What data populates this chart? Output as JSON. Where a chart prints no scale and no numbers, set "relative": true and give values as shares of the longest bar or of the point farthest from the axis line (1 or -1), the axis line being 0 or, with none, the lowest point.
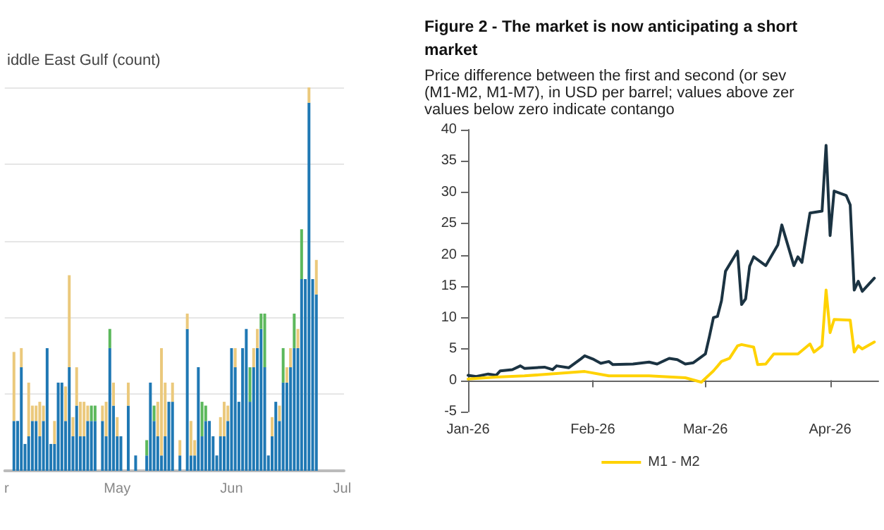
{
  "chart_data": [
    {
      "type": "bar",
      "title": "iddle East Gulf (count)",
      "relative": true,
      "stacked": true,
      "grid": "y",
      "legend": false,
      "x": [
        "--04-03",
        "--04-04",
        "--04-05",
        "--04-06",
        "--04-07",
        "--04-08",
        "--04-09",
        "--04-10",
        "--04-11",
        "--04-12",
        "--04-13",
        "--04-14",
        "--04-15",
        "--04-16",
        "--04-17",
        "--04-18",
        "--04-19",
        "--04-20",
        "--04-21",
        "--04-22",
        "--04-23",
        "--04-24",
        "--04-25",
        "--04-26",
        "--04-27",
        "--04-28",
        "--04-29",
        "--04-30",
        "--05-01",
        "--05-02",
        "--05-03",
        "--05-04",
        "--05-05",
        "--05-06",
        "--05-07",
        "--05-08",
        "--05-09",
        "--05-10",
        "--05-11",
        "--05-12",
        "--05-13",
        "--05-14",
        "--05-15",
        "--05-16",
        "--05-17",
        "--05-18",
        "--05-19",
        "--05-20",
        "--05-21",
        "--05-22",
        "--05-23",
        "--05-24",
        "--05-25",
        "--05-26",
        "--05-27",
        "--05-28",
        "--05-29",
        "--05-30",
        "--05-31",
        "--06-01",
        "--06-02",
        "--06-03",
        "--06-04",
        "--06-05",
        "--06-06",
        "--06-07",
        "--06-08",
        "--06-09",
        "--06-10",
        "--06-11",
        "--06-12",
        "--06-13",
        "--06-14",
        "--06-15",
        "--06-16",
        "--06-17",
        "--06-18",
        "--06-19",
        "--06-20",
        "--06-21",
        "--06-22",
        "--06-23",
        "--06-24"
      ],
      "xlim": [
        "--04-01",
        "--07-01"
      ],
      "xticks": [
        {
          "value": "--04-01",
          "label": "r"
        },
        {
          "value": "--05-01",
          "label": "May"
        },
        {
          "value": "--06-01",
          "label": "Jun"
        },
        {
          "value": "--07-01",
          "label": "Jul"
        }
      ],
      "series": [
        {
          "color": "#1f78b4",
          "values": [
            0.13,
            0.13,
            0.27,
            0.07,
            0.09,
            0.13,
            0.13,
            0.09,
            0.13,
            0.32,
            0.07,
            0.07,
            0.23,
            0.23,
            0.13,
            0.27,
            0.09,
            0.17,
            0.09,
            0.09,
            0.13,
            0.13,
            0.13,
            null,
            0.13,
            0.09,
            0.32,
            0.17,
            0.09,
            0.09,
            null,
            0.17,
            null,
            0.04,
            null,
            null,
            0.04,
            0.23,
            0.13,
            0.09,
            0.04,
            0.09,
            0.18,
            0.18,
            null,
            0.04,
            null,
            0.37,
            0.04,
            0.04,
            0.27,
            0.09,
            0.13,
            0.13,
            0.09,
            0.04,
            0.09,
            0.09,
            0.13,
            0.32,
            0.27,
            0.18,
            0.32,
            0.37,
            0.18,
            0.27,
            0.32,
            0.37,
            0.27,
            0.04,
            0.09,
            0.18,
            0.13,
            0.23,
            0.23,
            0.27,
            0.32,
            0.32,
            0.5,
            0.5,
            0.96,
            0.5,
            0.46
          ]
        },
        {
          "color": "#5cb85c",
          "values": [
            null,
            null,
            null,
            null,
            null,
            null,
            null,
            null,
            null,
            null,
            null,
            null,
            null,
            null,
            null,
            null,
            null,
            null,
            null,
            null,
            null,
            0.04,
            0.04,
            null,
            null,
            null,
            0.05,
            null,
            null,
            null,
            null,
            null,
            null,
            null,
            null,
            null,
            0.04,
            null,
            0.04,
            null,
            null,
            null,
            null,
            null,
            null,
            null,
            null,
            null,
            null,
            null,
            null,
            0.09,
            0.04,
            null,
            null,
            null,
            null,
            null,
            null,
            null,
            null,
            null,
            null,
            null,
            0.09,
            null,
            null,
            0.04,
            0.14,
            null,
            null,
            null,
            null,
            0.09,
            null,
            null,
            0.09,
            null,
            0.13,
            null,
            null,
            null,
            null
          ]
        },
        {
          "color": "#ebc97c",
          "values": [
            0.18,
            null,
            0.05,
            null,
            0.14,
            0.04,
            0.04,
            0.09,
            0.04,
            null,
            null,
            0.06,
            null,
            null,
            0.09,
            0.24,
            0.05,
            0.1,
            0.09,
            0.09,
            0.04,
            null,
            null,
            null,
            0.04,
            0.09,
            null,
            0.06,
            0.05,
            null,
            null,
            0.06,
            null,
            null,
            null,
            null,
            null,
            null,
            null,
            0.09,
            0.28,
            0.14,
            null,
            0.05,
            null,
            0.04,
            null,
            0.04,
            0.09,
            0.04,
            null,
            null,
            null,
            null,
            null,
            null,
            0.05,
            0.09,
            0.04,
            null,
            0.05,
            null,
            null,
            null,
            null,
            0.05,
            0.05,
            null,
            null,
            null,
            0.05,
            null,
            0.04,
            null,
            0.04,
            0.05,
            null,
            0.05,
            null,
            null,
            0.04,
            null,
            0.09
          ]
        }
      ]
    },
    {
      "type": "line",
      "title": "Figure 2 - The market is now anticipating a short\nmarket",
      "subtitle": "Price difference between the first and second (or sev\n(M1-M2, M1-M7), in USD per barrel; values above zer\nvalues below zero indicate contango",
      "xlim": [
        "2026-01-01",
        "2026-04-13"
      ],
      "xticks": [
        {
          "value": "2026-01-01",
          "label": "Jan-26"
        },
        {
          "value": "2026-02-01",
          "label": "Feb-26"
        },
        {
          "value": "2026-03-01",
          "label": "Mar-26"
        },
        {
          "value": "2026-04-01",
          "label": "Apr-26"
        }
      ],
      "ylim": [
        -5,
        40
      ],
      "yticks": [
        -5,
        0,
        5,
        10,
        15,
        20,
        25,
        30,
        35,
        40
      ],
      "legend": "bottom",
      "marker": "none",
      "line_style": "solid",
      "series": [
        {
          "color": "#1b3342",
          "x": [
            "2026-01-01",
            "2026-01-03",
            "2026-01-06",
            "2026-01-08",
            "2026-01-09",
            "2026-01-12",
            "2026-01-14",
            "2026-01-15",
            "2026-01-20",
            "2026-01-22",
            "2026-01-23",
            "2026-01-26",
            "2026-01-29",
            "2026-01-30",
            "2026-02-01",
            "2026-02-03",
            "2026-02-05",
            "2026-02-06",
            "2026-02-11",
            "2026-02-15",
            "2026-02-17",
            "2026-02-20",
            "2026-02-22",
            "2026-02-24",
            "2026-02-26",
            "2026-03-01",
            "2026-03-02",
            "2026-03-03",
            "2026-03-04",
            "2026-03-05",
            "2026-03-06",
            "2026-03-09",
            "2026-03-10",
            "2026-03-11",
            "2026-03-12",
            "2026-03-13",
            "2026-03-16",
            "2026-03-19",
            "2026-03-20",
            "2026-03-23",
            "2026-03-24",
            "2026-03-25",
            "2026-03-27",
            "2026-03-30",
            "2026-03-31",
            "2026-04-01",
            "2026-04-02",
            "2026-04-05",
            "2026-04-06",
            "2026-04-07",
            "2026-04-08",
            "2026-04-09",
            "2026-04-12"
          ],
          "values": [
            0.8,
            0.6,
            1.0,
            0.8,
            1.5,
            1.7,
            2.3,
            1.9,
            2.1,
            1.7,
            2.3,
            2.0,
            3.4,
            3.9,
            3.4,
            2.7,
            3.0,
            2.5,
            2.6,
            2.9,
            2.6,
            3.5,
            3.3,
            2.6,
            2.8,
            4.2,
            7.0,
            10.0,
            10.2,
            12.7,
            17.4,
            20.6,
            12.1,
            13.0,
            18.2,
            19.7,
            18.3,
            21.6,
            24.8,
            18.3,
            19.7,
            18.8,
            26.7,
            27.0,
            37.5,
            23.1,
            30.2,
            29.5,
            28.0,
            14.4,
            15.8,
            14.2,
            16.3
          ]
        },
        {
          "name": "M1 - M2",
          "color": "#ffd200",
          "x": [
            "2026-01-01",
            "2026-01-08",
            "2026-01-15",
            "2026-01-30",
            "2026-02-05",
            "2026-02-15",
            "2026-02-24",
            "2026-02-28",
            "2026-03-03",
            "2026-03-05",
            "2026-03-07",
            "2026-03-09",
            "2026-03-10",
            "2026-03-13",
            "2026-03-14",
            "2026-03-16",
            "2026-03-18",
            "2026-03-24",
            "2026-03-27",
            "2026-03-28",
            "2026-03-30",
            "2026-03-31",
            "2026-04-01",
            "2026-04-02",
            "2026-04-06",
            "2026-04-07",
            "2026-04-08",
            "2026-04-09",
            "2026-04-12"
          ],
          "values": [
            0.2,
            0.5,
            0.7,
            1.4,
            0.7,
            0.7,
            0.4,
            -0.3,
            1.5,
            3.0,
            3.5,
            5.5,
            5.7,
            5.3,
            2.5,
            2.6,
            4.2,
            4.2,
            5.8,
            4.5,
            5.5,
            14.4,
            7.6,
            9.7,
            9.6,
            4.5,
            5.5,
            5.0,
            6.1
          ]
        }
      ]
    }
  ]
}
